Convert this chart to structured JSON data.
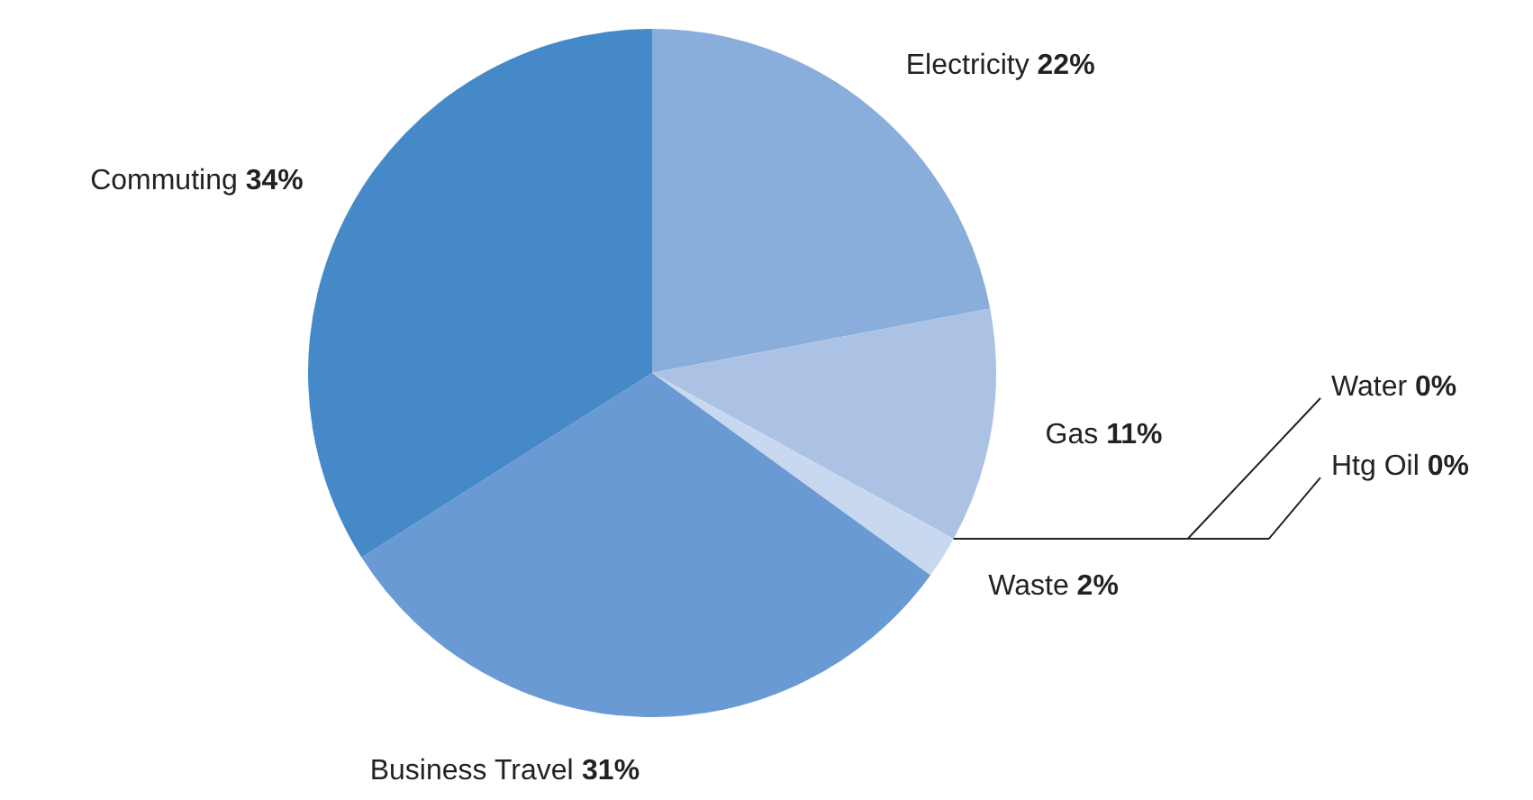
{
  "chart_data": {
    "type": "pie",
    "categories": [
      "Electricity",
      "Gas",
      "Water",
      "Htg Oil",
      "Waste",
      "Business Travel",
      "Commuting"
    ],
    "values": [
      22,
      11,
      0,
      0,
      2,
      31,
      34
    ],
    "value_labels": [
      "22%",
      "11%",
      "0%",
      "0%",
      "2%",
      "31%",
      "34%"
    ],
    "colors": [
      "#8aaedb",
      "#abc2e5",
      "#b9cdea",
      "#c0d2ec",
      "#c8d8ef",
      "#6a9ad3",
      "#4689c8"
    ],
    "legend": false
  }
}
